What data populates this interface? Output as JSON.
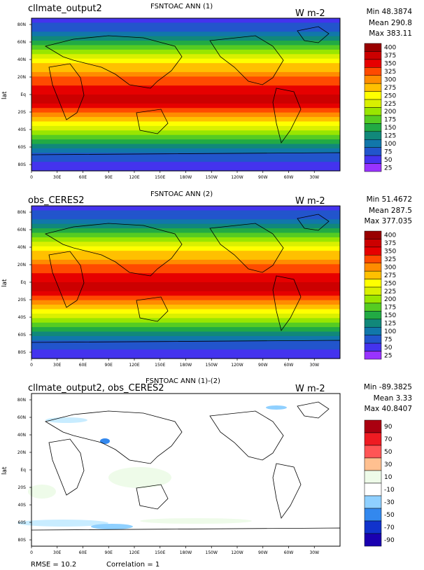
{
  "panels": [
    {
      "case": "cllmate_output2",
      "title": "FSNTOAC ANN (1)",
      "units": "W m-2",
      "stats": {
        "min": "Min 48.3874",
        "mean": "Mean 290.8",
        "max": "Max 383.11"
      },
      "ylabel": "lat",
      "lat_ticks": [
        "80N",
        "60N",
        "40N",
        "20N",
        "Eq",
        "20S",
        "40S",
        "60S",
        "80S"
      ],
      "lon_ticks": [
        "0",
        "30E",
        "60E",
        "90E",
        "120E",
        "150E",
        "180W",
        "150W",
        "120W",
        "90W",
        "60W",
        "30W"
      ],
      "colorbar": {
        "labels": [
          "400",
          "375",
          "350",
          "325",
          "300",
          "275",
          "250",
          "225",
          "200",
          "175",
          "150",
          "125",
          "100",
          "75",
          "50",
          "25"
        ],
        "colors": [
          "#990000",
          "#cc0000",
          "#e60000",
          "#ff4a00",
          "#ff8c00",
          "#ffc000",
          "#ffff00",
          "#d9f000",
          "#99e600",
          "#55cc22",
          "#22aa44",
          "#11887a",
          "#1177aa",
          "#2255cc",
          "#4433ee",
          "#9933ff"
        ]
      }
    },
    {
      "case": "obs_CERES2",
      "title": "FSNTOAC ANN (2)",
      "units": "W m-2",
      "stats": {
        "min": "Min 51.4672",
        "mean": "Mean 287.5",
        "max": "Max 377.035"
      },
      "ylabel": "lat",
      "lat_ticks": [
        "80N",
        "60N",
        "40N",
        "20N",
        "Eq",
        "20S",
        "40S",
        "60S",
        "80S"
      ],
      "lon_ticks": [
        "0",
        "30E",
        "60E",
        "90E",
        "120E",
        "150E",
        "180W",
        "150W",
        "120W",
        "90W",
        "60W",
        "30W"
      ],
      "colorbar": {
        "labels": [
          "400",
          "375",
          "350",
          "325",
          "300",
          "275",
          "250",
          "225",
          "200",
          "175",
          "150",
          "125",
          "100",
          "75",
          "50",
          "25"
        ],
        "colors": [
          "#990000",
          "#cc0000",
          "#e60000",
          "#ff4a00",
          "#ff8c00",
          "#ffc000",
          "#ffff00",
          "#d9f000",
          "#99e600",
          "#55cc22",
          "#22aa44",
          "#11887a",
          "#1177aa",
          "#2255cc",
          "#4433ee",
          "#9933ff"
        ]
      }
    },
    {
      "case": "cllmate_output2, obs_CERES2",
      "title": "FSNTOAC ANN (1)-(2)",
      "units": "W m-2",
      "stats": {
        "min": "Min -89.3825",
        "mean": "Mean 3.33",
        "max": "Max 40.8407"
      },
      "ylabel": "lat",
      "lat_ticks": [
        "80N",
        "60N",
        "40N",
        "20N",
        "Eq",
        "20S",
        "40S",
        "60S",
        "80S"
      ],
      "lon_ticks": [
        "0",
        "30E",
        "60E",
        "90E",
        "120E",
        "150E",
        "180W",
        "150W",
        "120W",
        "90W",
        "60W",
        "30W"
      ],
      "colorbar": {
        "labels": [
          "90",
          "70",
          "50",
          "30",
          "10",
          "-10",
          "-30",
          "-50",
          "-70",
          "-90"
        ],
        "colors": [
          "#aa0010",
          "#ee1b22",
          "#ff5555",
          "#ffc090",
          "#eefbe9",
          "#ffffff",
          "#8fd0ff",
          "#3388ee",
          "#1133cc",
          "#1a00b0"
        ]
      }
    }
  ],
  "footer": {
    "rmse": "RMSE = 10.2",
    "correlation": "Correlation = 1"
  }
}
